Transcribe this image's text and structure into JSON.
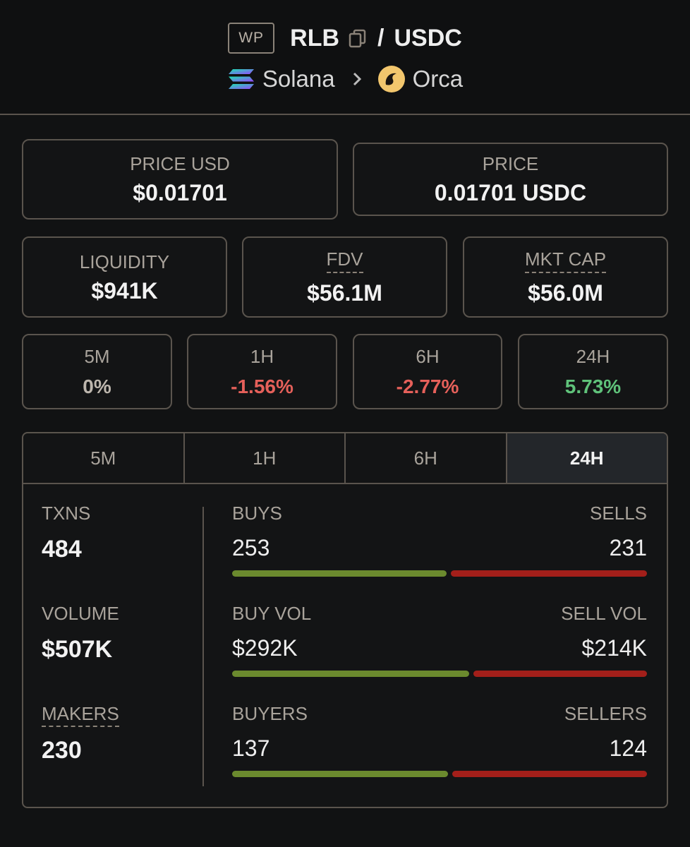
{
  "header": {
    "badge": "WP",
    "base_symbol": "RLB",
    "separator": "/",
    "quote_symbol": "USDC",
    "chain": "Solana",
    "dex": "Orca"
  },
  "prices": {
    "price_usd_label": "PRICE USD",
    "price_usd_value": "$0.01701",
    "price_label": "PRICE",
    "price_value": "0.01701 USDC"
  },
  "metrics": {
    "liquidity_label": "LIQUIDITY",
    "liquidity_value": "$941K",
    "fdv_label": "FDV",
    "fdv_value": "$56.1M",
    "mktcap_label": "MKT CAP",
    "mktcap_value": "$56.0M"
  },
  "changes": [
    {
      "label": "5M",
      "value": "0%",
      "color": "#bdb6ad"
    },
    {
      "label": "1H",
      "value": "-1.56%",
      "color": "#e5605a"
    },
    {
      "label": "6H",
      "value": "-2.77%",
      "color": "#e5605a"
    },
    {
      "label": "24H",
      "value": "5.73%",
      "color": "#5fc27a"
    }
  ],
  "tabs": [
    "5M",
    "1H",
    "6H",
    "24H"
  ],
  "active_tab": "24H",
  "stats": {
    "txns_label": "TXNS",
    "txns_value": "484",
    "volume_label": "VOLUME",
    "volume_value": "$507K",
    "makers_label": "MAKERS",
    "makers_value": "230"
  },
  "ratios": [
    {
      "left_label": "BUYS",
      "right_label": "SELLS",
      "left_value": "253",
      "right_value": "231",
      "buy_fraction": 0.523
    },
    {
      "left_label": "BUY VOL",
      "right_label": "SELL VOL",
      "left_value": "$292K",
      "right_value": "$214K",
      "buy_fraction": 0.577
    },
    {
      "left_label": "BUYERS",
      "right_label": "SELLERS",
      "left_value": "137",
      "right_value": "124",
      "buy_fraction": 0.525
    }
  ],
  "colors": {
    "buy_bar": "#6b8a2e",
    "sell_bar": "#a31f1a",
    "positive": "#5fc27a",
    "negative": "#e5605a"
  }
}
